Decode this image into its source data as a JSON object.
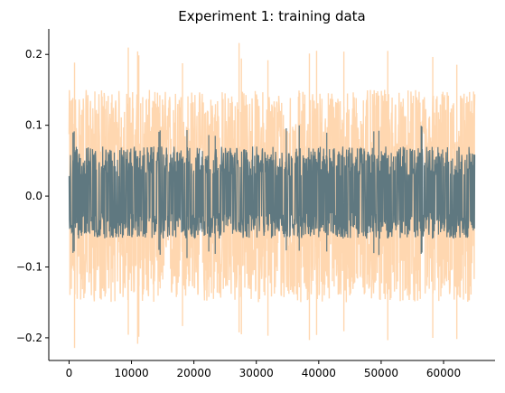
{
  "chart_data": {
    "type": "line",
    "title": "Experiment 1: training data",
    "xlabel": "",
    "ylabel": "",
    "xlim": [
      -3250,
      68250
    ],
    "ylim": [
      -0.232,
      0.236
    ],
    "x_ticks": [
      0,
      10000,
      20000,
      30000,
      40000,
      50000,
      60000
    ],
    "x_tick_labels": [
      "0",
      "10000",
      "20000",
      "30000",
      "40000",
      "50000",
      "60000"
    ],
    "y_ticks": [
      -0.2,
      -0.1,
      0.0,
      0.1,
      0.2
    ],
    "y_tick_labels": [
      "−0.2",
      "−0.1",
      "0.0",
      "0.1",
      "0.2"
    ],
    "grid": false,
    "spines": [
      "left",
      "bottom"
    ],
    "series": [
      {
        "x_range": [
          0,
          65000
        ],
        "typical_band": [
          -0.15,
          0.15
        ],
        "peaks": [
          -0.215,
          0.218
        ],
        "color": "#ffd7b0"
      },
      {
        "x_range": [
          0,
          65000
        ],
        "typical_band": [
          -0.06,
          0.07
        ],
        "peaks": [
          -0.089,
          0.1
        ],
        "color": "#5f7880"
      }
    ]
  }
}
